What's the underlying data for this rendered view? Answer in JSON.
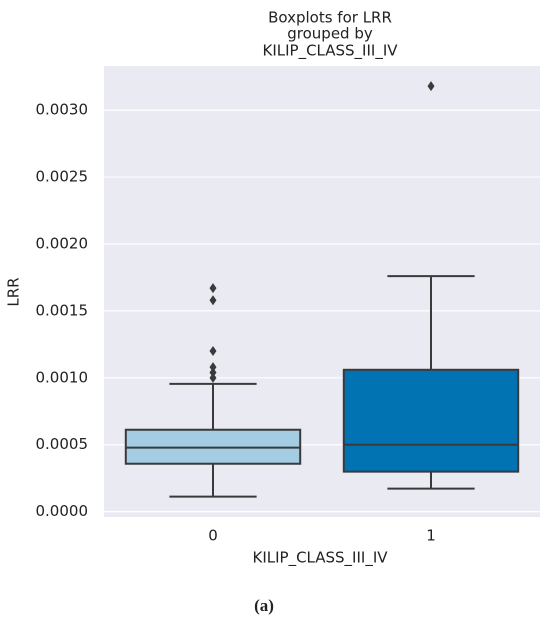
{
  "chart_data": {
    "type": "box",
    "title": [
      "Boxplots for LRR",
      "grouped by",
      "KILIP_CLASS_III_IV"
    ],
    "x_label": "KILIP_CLASS_III_IV",
    "y_label": "LRR",
    "categories": [
      "0",
      "1"
    ],
    "boxes": [
      {
        "color": "#a4cde3",
        "min": 0.000112,
        "q1": 0.000358,
        "median": 0.000478,
        "q3": 0.000612,
        "max": 0.000955,
        "outliers": [
          0.00167,
          0.00158,
          0.0012,
          0.00108,
          0.00104,
          0.001
        ]
      },
      {
        "color": "#0173b2",
        "min": 0.000172,
        "q1": 0.000299,
        "median": 0.0005,
        "q3": 0.00106,
        "max": 0.00176,
        "outliers": [
          0.00318
        ]
      }
    ],
    "ylim": [
      -4e-05,
      0.00333
    ],
    "yticks": [
      {
        "value": 0,
        "label": "0.0000"
      },
      {
        "value": 0.0005,
        "label": "0.0005"
      },
      {
        "value": 0.001,
        "label": "0.0010"
      },
      {
        "value": 0.0015,
        "label": "0.0015"
      },
      {
        "value": 0.002,
        "label": "0.0020"
      },
      {
        "value": 0.0025,
        "label": "0.0025"
      },
      {
        "value": 0.003,
        "label": "0.0030"
      }
    ],
    "grid": true
  },
  "caption": "(a)"
}
